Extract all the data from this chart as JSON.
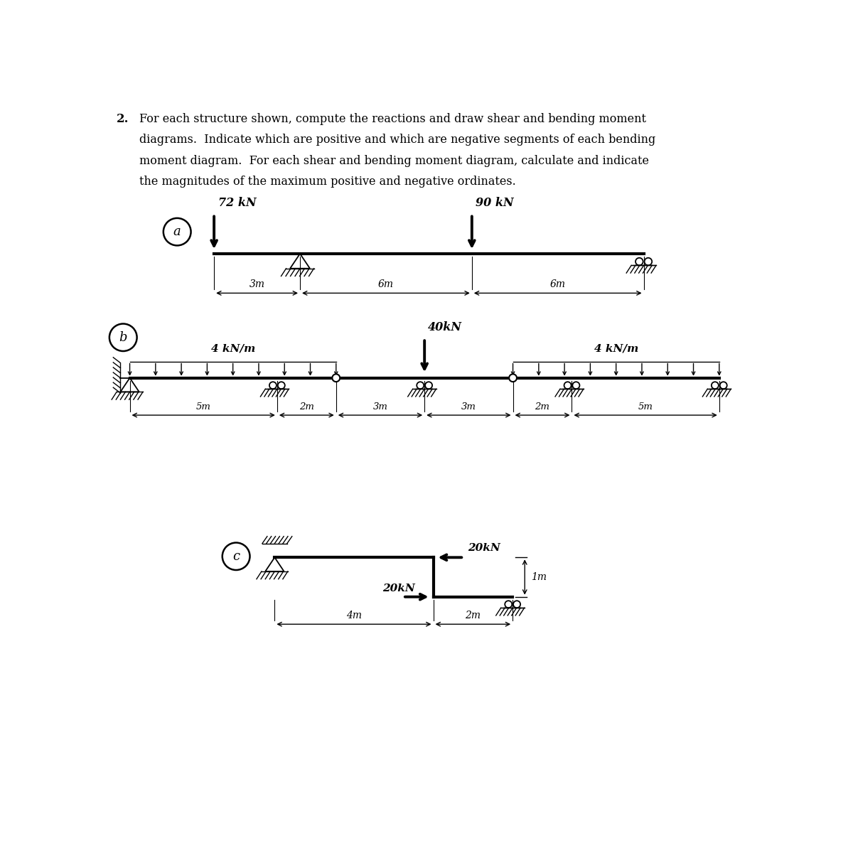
{
  "title_number": "2.",
  "title_text_lines": [
    "For each structure shown, compute the reactions and draw shear and bending moment",
    "diagrams.  Indicate which are positive and which are negative segments of each bending",
    "moment diagram.  For each shear and bending moment diagram, calculate and indicate",
    "the magnitudes of the maximum positive and negative ordinates."
  ],
  "bg_color": "#ffffff",
  "diagram_a": {
    "label": "a",
    "load1_val": "72 kN",
    "load2_val": "90 kN",
    "dim1": "3m",
    "dim2": "6m",
    "dim3": "6m"
  },
  "diagram_b": {
    "label": "b",
    "load_center": "40kN",
    "udl_left": "4 kN/m",
    "udl_right": "4 kN/m",
    "dims": [
      "5m",
      "2m",
      "3m",
      "3m",
      "2m",
      "5m"
    ]
  },
  "diagram_c": {
    "label": "c",
    "load_top": "20kN",
    "load_mid": "20kN",
    "dim_h": "4m",
    "dim_r": "2m",
    "dim_v": "1m"
  }
}
